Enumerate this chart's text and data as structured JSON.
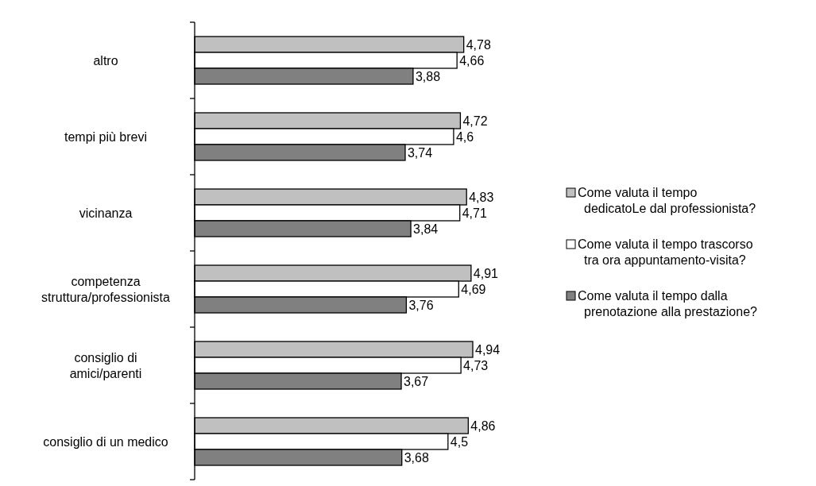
{
  "chart_data": {
    "type": "bar",
    "orientation": "horizontal",
    "legend": "right",
    "categories": [
      "altro",
      "tempi più brevi",
      "vicinanza",
      "competenza\nstruttura/professionista",
      "consiglio di\namici/parenti",
      "consiglio di un medico"
    ],
    "series": [
      {
        "name": "Come valuta il tempo\ndedicatoLe dal professionista?",
        "color": "#c0c0c0",
        "values": [
          4.78,
          4.72,
          4.83,
          4.91,
          4.94,
          4.86
        ],
        "value_labels": [
          "4,78",
          "4,72",
          "4,83",
          "4,91",
          "4,94",
          "4,86"
        ]
      },
      {
        "name": "Come valuta il tempo trascorso\ntra ora appuntamento-visita?",
        "color": "#ffffff",
        "values": [
          4.66,
          4.6,
          4.71,
          4.69,
          4.73,
          4.5
        ],
        "value_labels": [
          "4,66",
          "4,6",
          "4,71",
          "4,69",
          "4,73",
          "4,5"
        ]
      },
      {
        "name": "Come valuta il tempo dalla\nprenotazione alla prestazione?",
        "color": "#808080",
        "values": [
          3.88,
          3.74,
          3.84,
          3.76,
          3.67,
          3.68
        ],
        "value_labels": [
          "3,88",
          "3,74",
          "3,84",
          "3,76",
          "3,67",
          "3,68"
        ]
      }
    ]
  }
}
